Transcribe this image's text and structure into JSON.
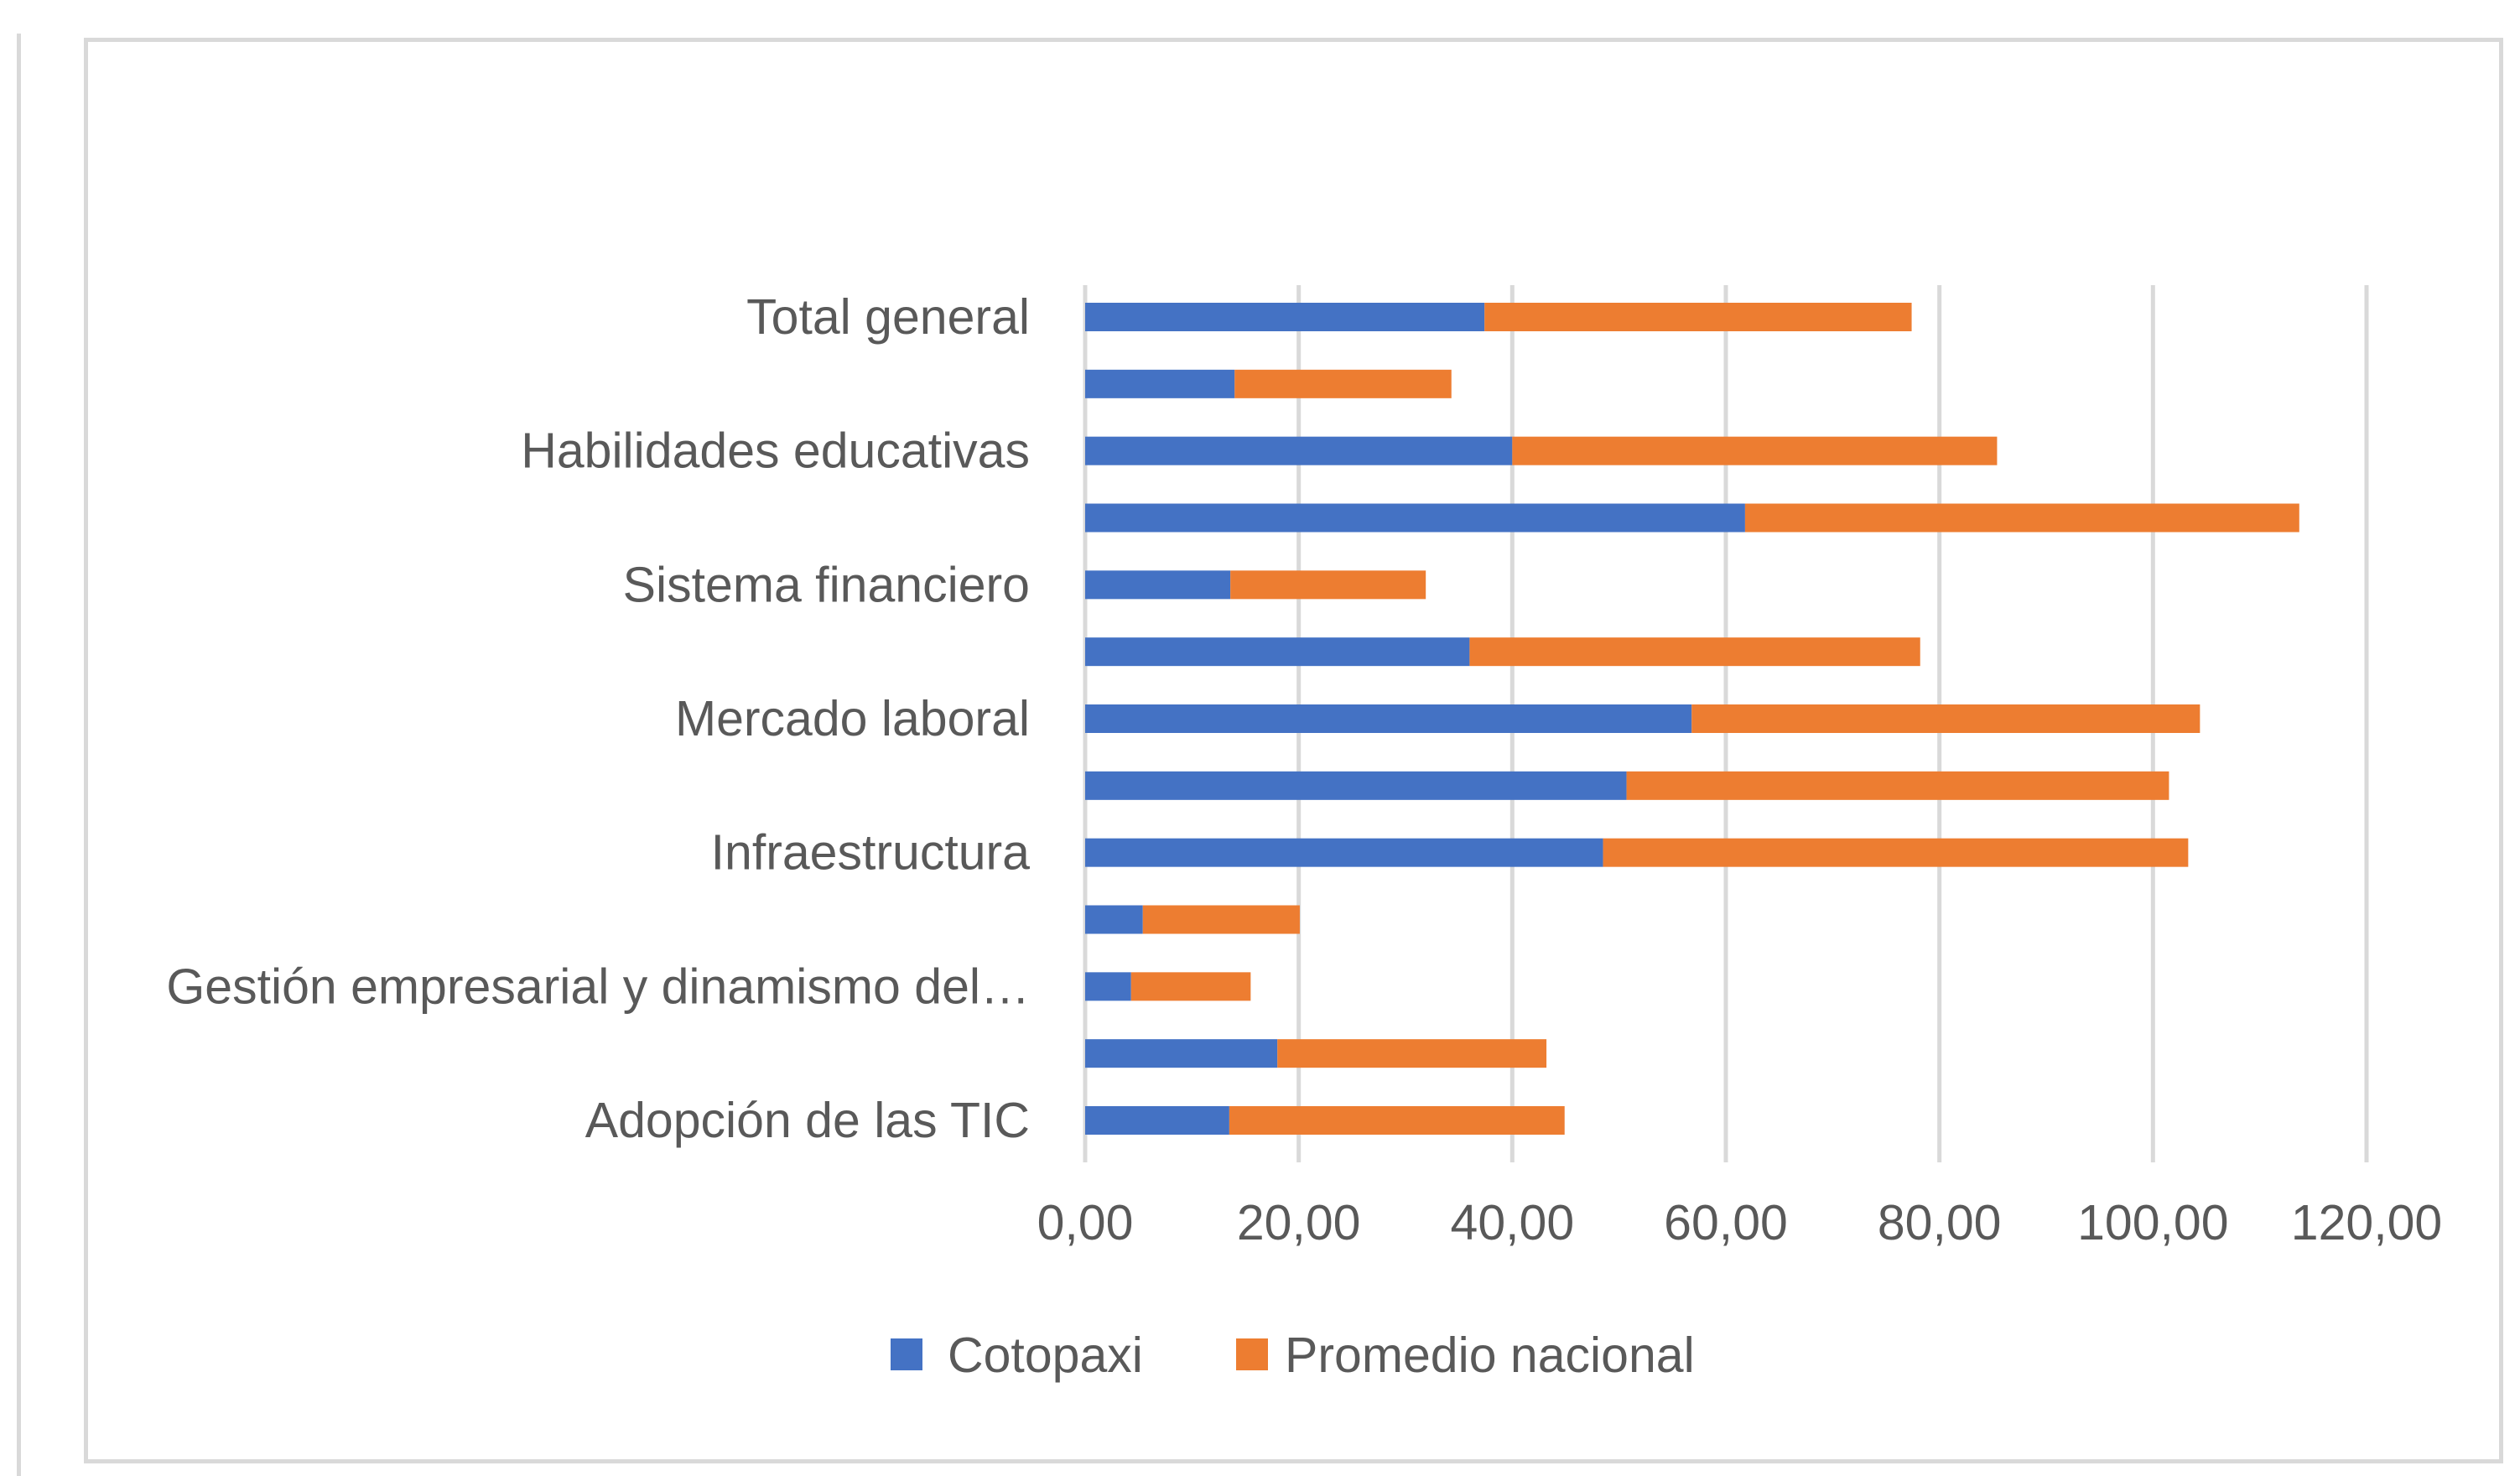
{
  "colors": {
    "cotopaxi": "#4472C4",
    "promedio": "#ED7D31",
    "grid": "#d9d9d9",
    "text": "#595959"
  },
  "chart_data": {
    "type": "bar",
    "orientation": "horizontal",
    "stacked": true,
    "categories": [
      "Adopción de las TIC",
      "",
      "Gestión empresarial y dinamismo del…",
      "",
      "Infraestructura",
      "",
      "Mercado laboral",
      "",
      "Sistema financiero",
      "",
      "Habilidades educativas",
      "",
      "Total general"
    ],
    "series": [
      {
        "name": "Cotopaxi",
        "values": [
          13.5,
          18.0,
          4.3,
          5.4,
          48.5,
          50.7,
          56.8,
          36.0,
          13.6,
          61.8,
          40.0,
          14.0,
          37.4
        ]
      },
      {
        "name": "Promedio nacional",
        "values": [
          31.4,
          25.2,
          11.2,
          14.7,
          54.8,
          50.8,
          47.6,
          42.2,
          18.3,
          51.9,
          45.4,
          20.3,
          40.0
        ]
      }
    ],
    "xlim": [
      0,
      120
    ],
    "xticks": [
      0,
      20,
      40,
      60,
      80,
      100,
      120
    ],
    "xtick_labels": [
      "0,00",
      "20,00",
      "40,00",
      "60,00",
      "80,00",
      "100,00",
      "120,00"
    ],
    "grid": true,
    "legend": "bottom"
  }
}
